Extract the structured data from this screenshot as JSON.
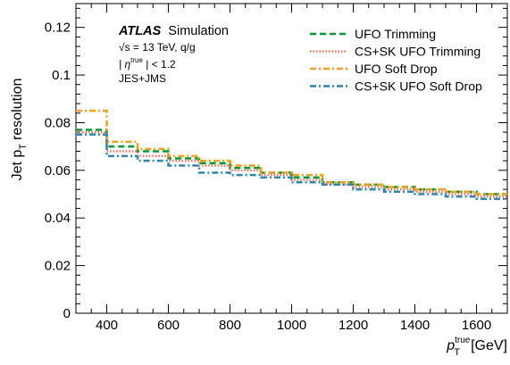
{
  "chart_data": {
    "type": "line",
    "step": true,
    "xlabel_main": "p",
    "xlabel_sub": "T",
    "xlabel_sup": "true",
    "xlabel_unit": "[GeV]",
    "ylabel_main": "Jet p",
    "ylabel_sub": "T",
    "ylabel_tail": "resolution",
    "xlim": [
      300,
      1700
    ],
    "ylim": [
      0,
      0.13
    ],
    "x_ticks": [
      400,
      600,
      800,
      1000,
      1200,
      1400,
      1600
    ],
    "y_ticks": [
      0,
      0.02,
      0.04,
      0.06,
      0.08,
      0.1,
      0.12
    ],
    "x_tick_labels": [
      "400",
      "600",
      "800",
      "1000",
      "1200",
      "1400",
      "1600"
    ],
    "y_tick_labels": [
      "0",
      "0.02",
      "0.04",
      "0.06",
      "0.08",
      "0.1",
      "0.12"
    ],
    "annotation": {
      "brand": "ATLAS",
      "brand_suffix": "Simulation",
      "line1_sqrt": "√s",
      "line1_rest": " = 13 TeV, q/g",
      "line2_a": "| η",
      "line2_sup": "true",
      "line2_b": " | < 1.2",
      "line3": "JES+JMS"
    },
    "legend_position": "top-right",
    "bin_edges": [
      300,
      400,
      500,
      600,
      700,
      800,
      900,
      1000,
      1100,
      1200,
      1300,
      1400,
      1500,
      1600,
      1700
    ],
    "series": [
      {
        "name": "UFO Trimming",
        "color": "#009933",
        "style": "dashed",
        "values": [
          0.077,
          0.07,
          0.068,
          0.065,
          0.063,
          0.061,
          0.059,
          0.057,
          0.055,
          0.054,
          0.053,
          0.052,
          0.051,
          0.05
        ]
      },
      {
        "name": "CS+SK UFO Trimming",
        "color": "#e8735a",
        "style": "dotted",
        "values": [
          0.076,
          0.068,
          0.066,
          0.064,
          0.062,
          0.06,
          0.058,
          0.056,
          0.054,
          0.053,
          0.052,
          0.051,
          0.05,
          0.049
        ]
      },
      {
        "name": "UFO Soft Drop",
        "color": "#f0a020",
        "style": "dashdot",
        "values": [
          0.085,
          0.072,
          0.069,
          0.066,
          0.064,
          0.062,
          0.059,
          0.058,
          0.055,
          0.054,
          0.053,
          0.052,
          0.051,
          0.05
        ]
      },
      {
        "name": "CS+SK UFO Soft Drop",
        "color": "#2e86ab",
        "style": "dashdot",
        "values": [
          0.075,
          0.066,
          0.064,
          0.062,
          0.059,
          0.058,
          0.057,
          0.055,
          0.054,
          0.052,
          0.051,
          0.05,
          0.049,
          0.048
        ]
      }
    ]
  }
}
